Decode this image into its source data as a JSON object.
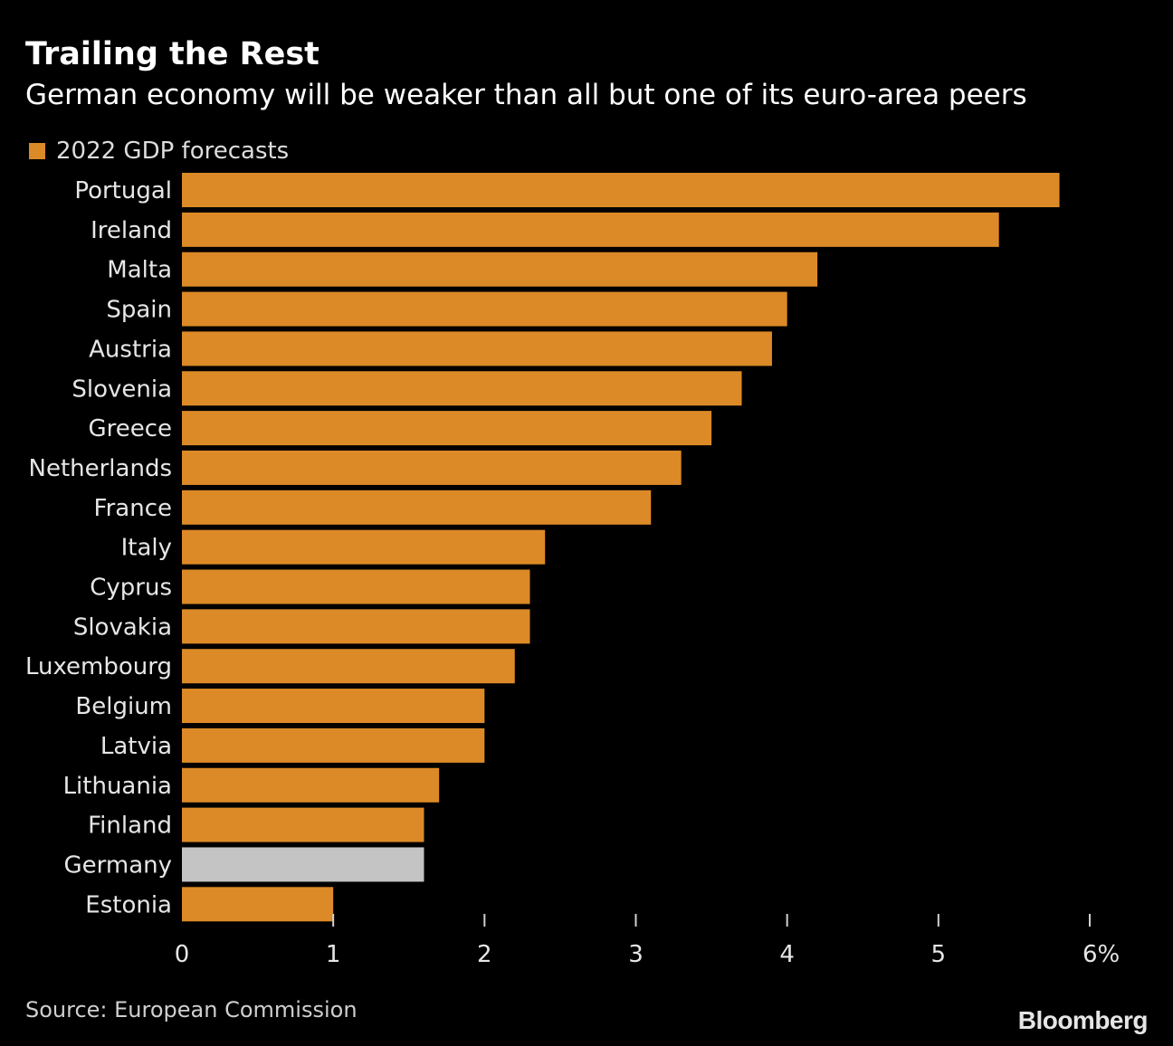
{
  "title": "Trailing the Rest",
  "subtitle": "German economy will be weaker than all but one of its euro-area peers",
  "legend": {
    "label": "2022 GDP forecasts"
  },
  "source": "Source: European Commission",
  "brand": "Bloomberg",
  "colors": {
    "background": "#000000",
    "bar": "#dc8a27",
    "highlight": "#c4c4c4"
  },
  "chart_data": {
    "type": "bar",
    "orientation": "horizontal",
    "title": "Trailing the Rest",
    "subtitle": "German economy will be weaker than all but one of its euro-area peers",
    "categories": [
      "Portugal",
      "Ireland",
      "Malta",
      "Spain",
      "Austria",
      "Slovenia",
      "Greece",
      "Netherlands",
      "France",
      "Italy",
      "Cyprus",
      "Slovakia",
      "Luxembourg",
      "Belgium",
      "Latvia",
      "Lithuania",
      "Finland",
      "Germany",
      "Estonia"
    ],
    "series": [
      {
        "name": "2022 GDP forecasts",
        "values": [
          5.8,
          5.4,
          4.2,
          4.0,
          3.9,
          3.7,
          3.5,
          3.3,
          3.1,
          2.4,
          2.3,
          2.3,
          2.2,
          2.0,
          2.0,
          1.7,
          1.6,
          1.6,
          1.0
        ]
      }
    ],
    "highlight": "Germany",
    "xlim": [
      0,
      6
    ],
    "xticks": [
      "0",
      "1",
      "2",
      "3",
      "4",
      "5",
      "6%"
    ],
    "grid": false,
    "legend_position": "top-left"
  }
}
